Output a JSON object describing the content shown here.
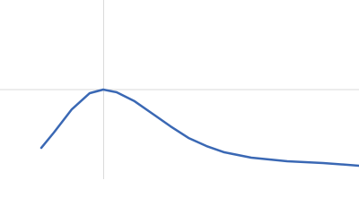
{
  "chart_data": {
    "type": "line",
    "x": [
      0.69,
      0.9,
      1.2,
      1.5,
      1.725,
      1.95,
      2.25,
      2.55,
      2.85,
      3.15,
      3.45,
      3.75,
      4.2,
      4.8,
      5.4,
      6.0
    ],
    "series": [
      {
        "color": "#3a68b4",
        "values": [
          0.386,
          0.574,
          0.861,
          1.06,
          1.104,
          1.071,
          0.96,
          0.806,
          0.651,
          0.508,
          0.408,
          0.331,
          0.265,
          0.221,
          0.199,
          0.166
        ]
      }
    ],
    "xlim": [
      0,
      6.0
    ],
    "ylim": [
      0,
      2.208
    ],
    "vlines": [
      1.732
    ],
    "hlines": [
      1.104
    ],
    "reference_color": "#d9d9d9"
  }
}
